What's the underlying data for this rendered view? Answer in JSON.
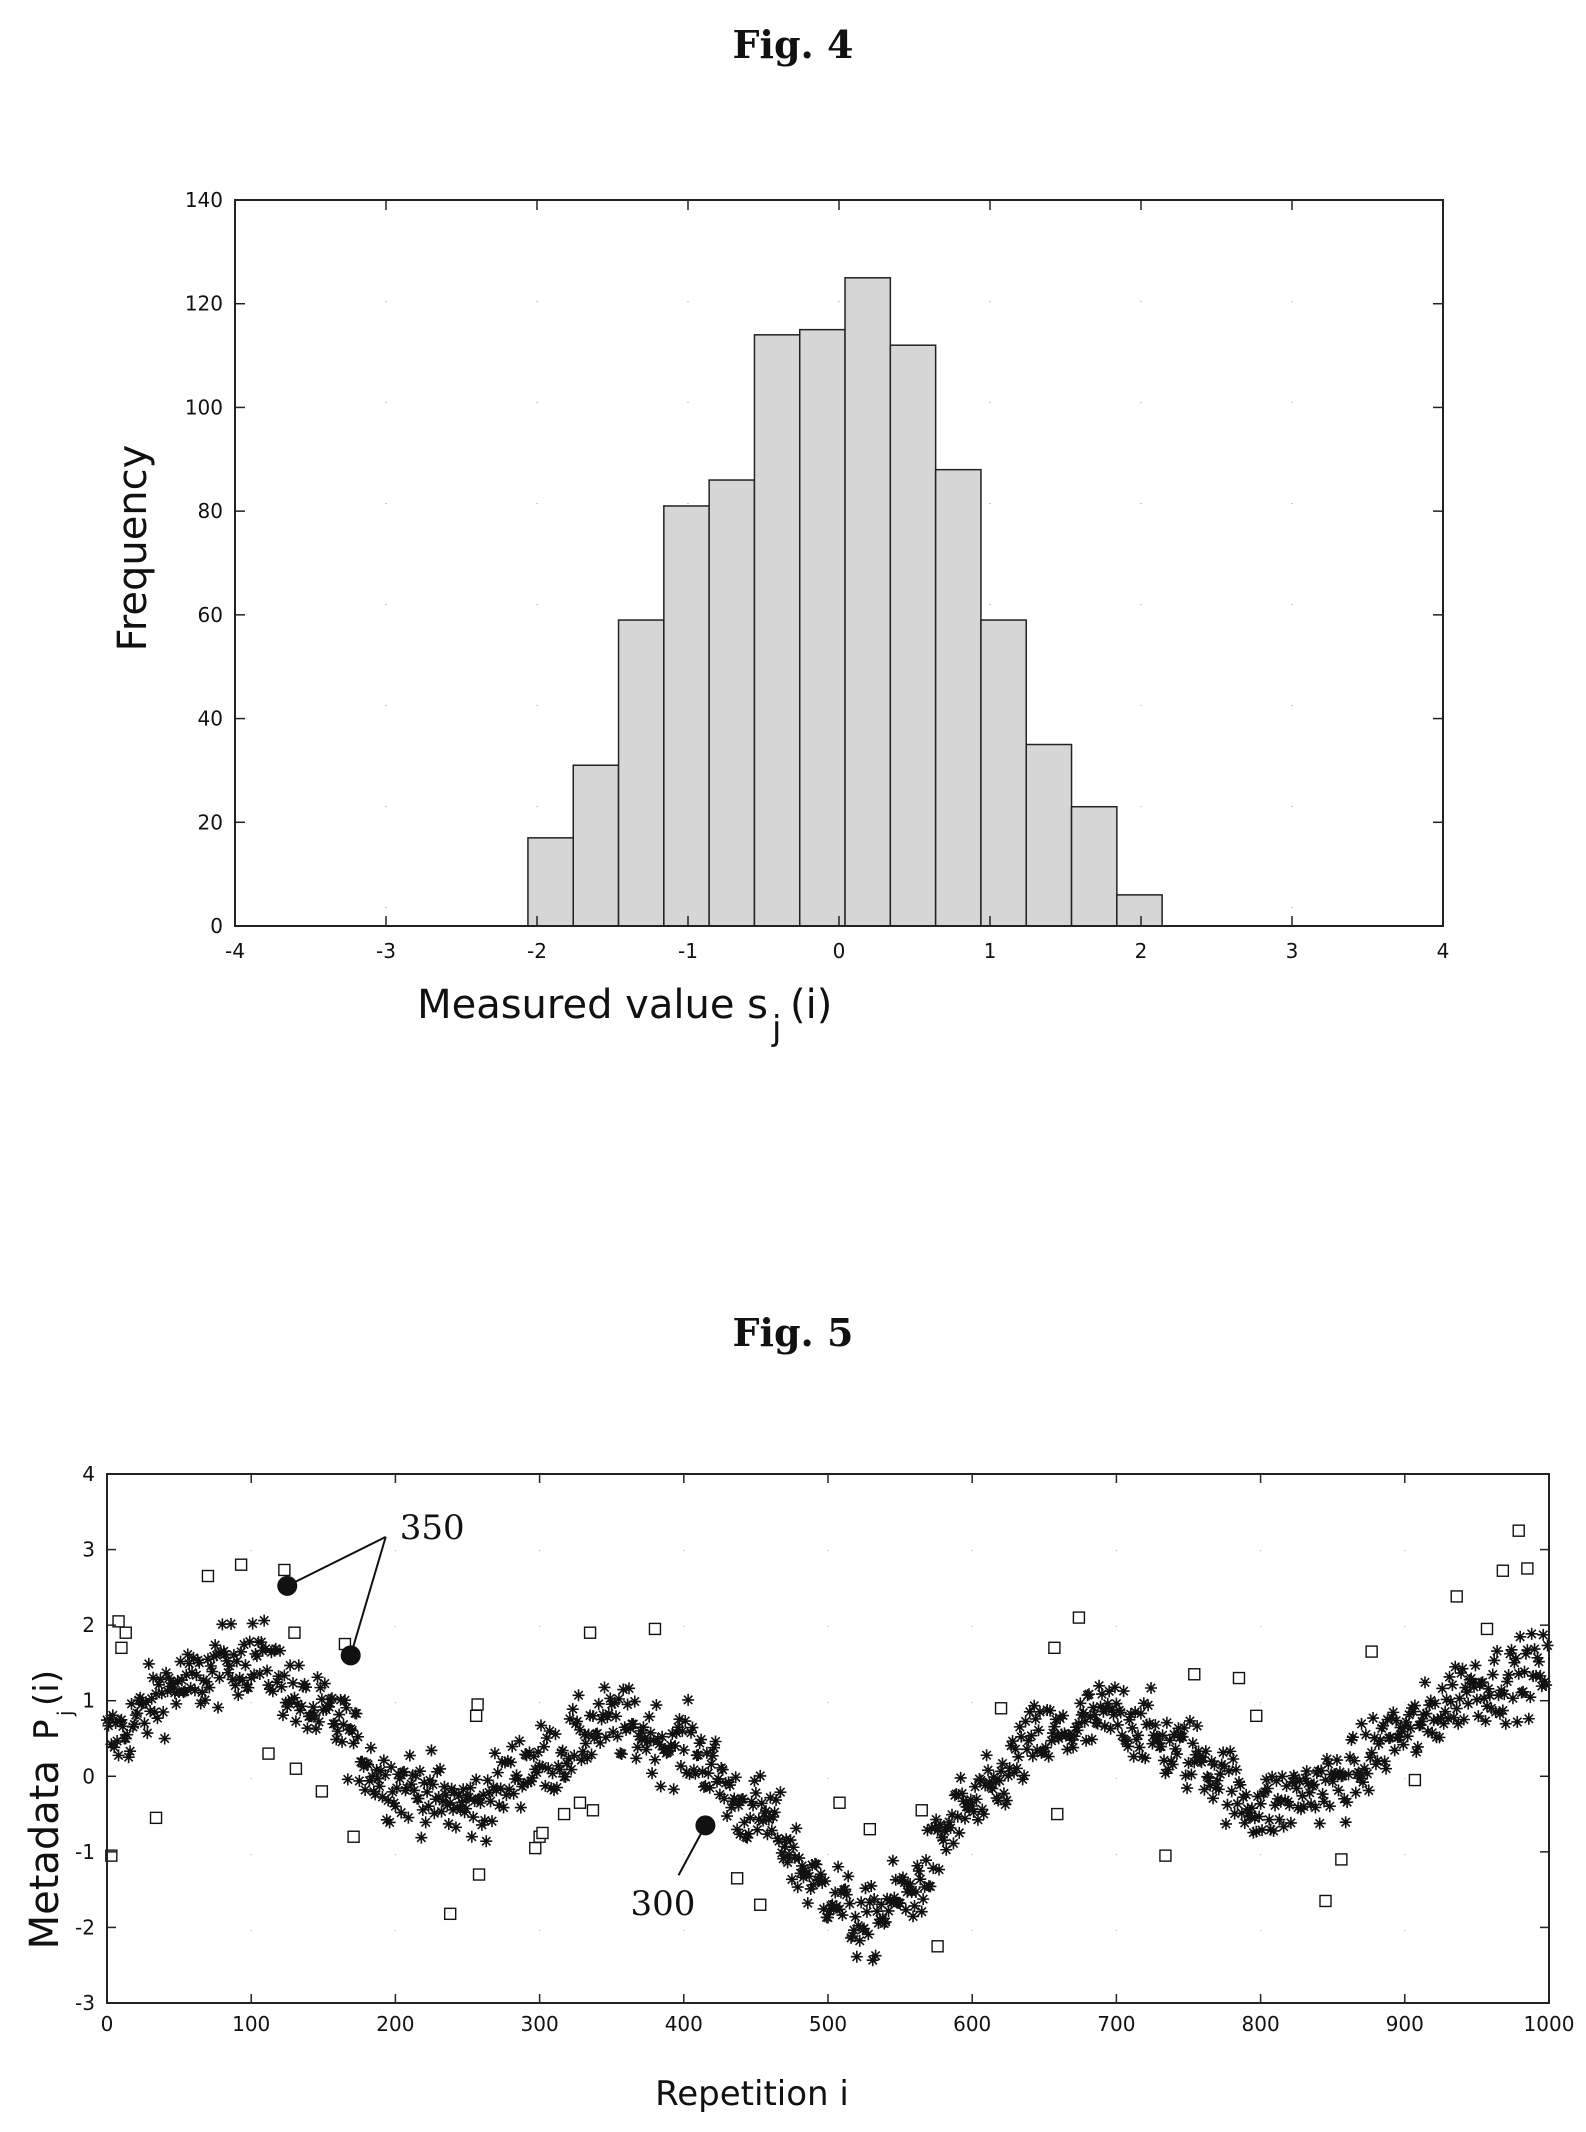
{
  "fig4": {
    "title": "Fig. 4",
    "chart_data": {
      "type": "bar",
      "xlabel_main": "Measured value s",
      "xlabel_sub": "j",
      "xlabel_tail": "(i)",
      "ylabel": "Frequency",
      "xlim": [
        -4,
        4
      ],
      "ylim": [
        0,
        140
      ],
      "xticks": [
        "-4",
        "-3",
        "-2",
        "-1",
        "0",
        "1",
        "2",
        "3",
        "4"
      ],
      "yticks": [
        "0",
        "20",
        "40",
        "60",
        "80",
        "100",
        "120",
        "140"
      ],
      "bin_edges": [
        -2.06,
        -1.76,
        -1.46,
        -1.16,
        -0.86,
        -0.56,
        -0.26,
        0.04,
        0.34,
        0.64,
        0.94,
        1.24,
        1.54,
        1.84,
        2.14
      ],
      "values": [
        17,
        31,
        59,
        81,
        86,
        114,
        115,
        125,
        112,
        88,
        59,
        35,
        23,
        6
      ],
      "bar_color": "#d6d6d6",
      "grid": "dotted"
    }
  },
  "fig5": {
    "title": "Fig. 5",
    "chart_data": {
      "type": "scatter",
      "xlabel": "Repetition i",
      "ylabel_main": "Metadata",
      "ylabel_p": "P",
      "ylabel_sub": "j",
      "ylabel_tail": "(i)",
      "xlim": [
        0,
        1000
      ],
      "ylim": [
        -3,
        4
      ],
      "xticks": [
        "0",
        "100",
        "200",
        "300",
        "400",
        "500",
        "600",
        "700",
        "800",
        "900",
        "1000"
      ],
      "yticks": [
        "-3",
        "-2",
        "-1",
        "0",
        "1",
        "2",
        "3",
        "4"
      ],
      "series": [
        {
          "marker": "asterisk",
          "n_points": 1000,
          "trend_x": [
            0,
            50,
            100,
            150,
            200,
            250,
            300,
            350,
            400,
            450,
            500,
            525,
            550,
            600,
            650,
            700,
            750,
            800,
            850,
            900,
            950,
            1000
          ],
          "trend_y": [
            0.5,
            1.2,
            1.6,
            0.8,
            -0.1,
            -0.4,
            0.2,
            0.7,
            0.4,
            -0.5,
            -1.5,
            -2.0,
            -1.6,
            -0.4,
            0.5,
            0.8,
            0.3,
            -0.4,
            -0.1,
            0.6,
            1.2,
            1.4
          ]
        },
        {
          "marker": "square",
          "points": [
            [
              3,
              -1.05
            ],
            [
              8,
              2.05
            ],
            [
              10,
              1.7
            ],
            [
              13,
              1.9
            ],
            [
              34,
              -0.55
            ],
            [
              70,
              2.65
            ],
            [
              93,
              2.8
            ],
            [
              112,
              0.3
            ],
            [
              123,
              2.73
            ],
            [
              130,
              1.9
            ],
            [
              131,
              0.1
            ],
            [
              149,
              -0.2
            ],
            [
              165,
              1.75
            ],
            [
              171,
              -0.8
            ],
            [
              238,
              -1.82
            ],
            [
              256,
              0.8
            ],
            [
              257,
              0.95
            ],
            [
              258,
              -1.3
            ],
            [
              297,
              -0.95
            ],
            [
              300,
              -0.8
            ],
            [
              302,
              -0.75
            ],
            [
              317,
              -0.5
            ],
            [
              328,
              -0.35
            ],
            [
              335,
              1.9
            ],
            [
              337,
              -0.45
            ],
            [
              380,
              1.95
            ],
            [
              437,
              -1.35
            ],
            [
              453,
              -1.7
            ],
            [
              508,
              -0.35
            ],
            [
              529,
              -0.7
            ],
            [
              565,
              -0.45
            ],
            [
              576,
              -2.25
            ],
            [
              620,
              0.9
            ],
            [
              657,
              1.7
            ],
            [
              659,
              -0.5
            ],
            [
              674,
              2.1
            ],
            [
              734,
              -1.05
            ],
            [
              754,
              1.35
            ],
            [
              785,
              1.3
            ],
            [
              797,
              0.8
            ],
            [
              845,
              -1.65
            ],
            [
              856,
              -1.1
            ],
            [
              877,
              1.65
            ],
            [
              907,
              -0.05
            ],
            [
              936,
              2.38
            ],
            [
              957,
              1.95
            ],
            [
              968,
              2.72
            ],
            [
              979,
              3.25
            ],
            [
              985,
              2.75
            ]
          ]
        }
      ],
      "annotations": [
        {
          "label": "350",
          "x": 125,
          "y": 2.52,
          "text_x": 203,
          "text_y": 3.3
        },
        {
          "label": "350",
          "x": 169,
          "y": 1.6,
          "text_x": 203,
          "text_y": 3.3
        },
        {
          "label": "300",
          "x": 415,
          "y": -0.65,
          "text_x": 370,
          "text_y": -1.68
        }
      ]
    }
  }
}
